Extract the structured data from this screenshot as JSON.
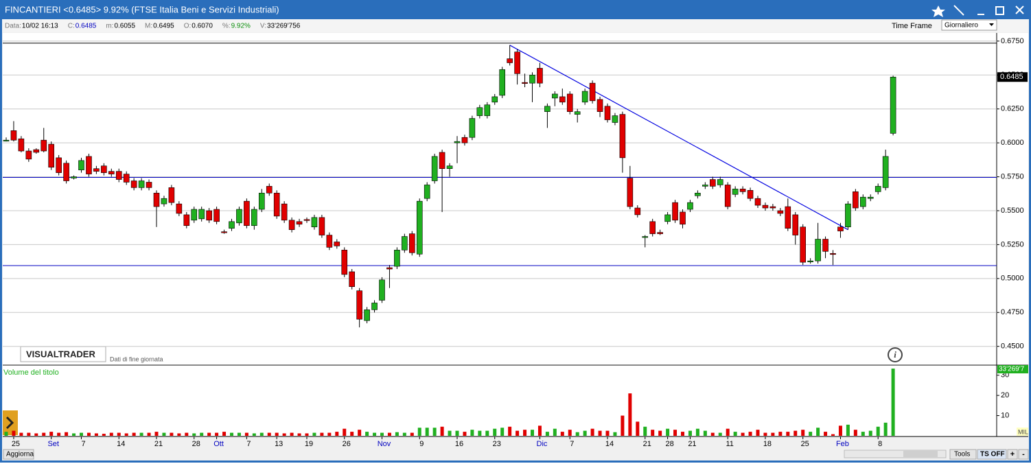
{
  "ui": {
    "title": "FINCANTIERI <0.6485> 9.92%  (FTSE Italia Beni e Servizi Industriali)",
    "info": [
      [
        "Data:",
        "10/02 16:13"
      ],
      [
        "C:",
        "0.6485"
      ],
      [
        "m:",
        "0.6055"
      ],
      [
        "M:",
        "0.6495"
      ],
      [
        "O:",
        "0.6070"
      ],
      [
        "%:",
        "9.92%"
      ],
      [
        "V:",
        "33'269'756"
      ]
    ],
    "time_frame_label": "Time Frame",
    "time_frame": "Giornaliero",
    "brand": "VISUALTRADER",
    "brand_note": "Dati di fine giornata",
    "unit": "MIL",
    "update": "Aggiorna",
    "tools": "Tools",
    "ts": "TS OFF",
    "plus": "+",
    "minus": "-"
  },
  "chart_data": {
    "type": "candlestick",
    "up_color": "#20b020",
    "down_color": "#e00000",
    "categories": [
      null,
      "25",
      null,
      null,
      null,
      null,
      "Set",
      null,
      null,
      null,
      "7",
      null,
      null,
      null,
      null,
      "14",
      null,
      null,
      null,
      null,
      "21",
      null,
      null,
      null,
      null,
      "28",
      null,
      null,
      "Ott",
      null,
      null,
      null,
      "7",
      null,
      null,
      null,
      "13",
      null,
      null,
      null,
      "19",
      null,
      null,
      null,
      null,
      "26",
      null,
      null,
      null,
      null,
      "Nov",
      null,
      null,
      null,
      null,
      "9",
      null,
      null,
      null,
      null,
      "16",
      null,
      null,
      null,
      null,
      "23",
      null,
      null,
      null,
      null,
      null,
      "Dic",
      null,
      null,
      null,
      "7",
      null,
      null,
      null,
      null,
      "14",
      null,
      null,
      null,
      null,
      "21",
      null,
      null,
      "28",
      null,
      null,
      "21",
      null,
      null,
      null,
      null,
      "11",
      null,
      null,
      null,
      null,
      "18",
      null,
      null,
      null,
      null,
      "25",
      null,
      null,
      null,
      null,
      "Feb",
      null,
      null,
      null,
      null,
      "8",
      null,
      null
    ],
    "open": [
      0.6015,
      0.609,
      0.603,
      0.594,
      0.595,
      0.602,
      0.599,
      0.589,
      0.585,
      0.574,
      0.58,
      0.59,
      0.581,
      0.583,
      0.579,
      0.579,
      0.577,
      0.572,
      0.567,
      0.571,
      0.563,
      0.555,
      0.567,
      0.555,
      0.547,
      0.543,
      0.544,
      0.55,
      0.551,
      0.5345,
      0.537,
      0.541,
      0.557,
      0.539,
      0.551,
      0.568,
      0.563,
      0.555,
      0.543,
      0.542,
      0.5435,
      0.538,
      0.545,
      0.532,
      0.527,
      0.521,
      0.505,
      0.491,
      0.469,
      0.477,
      0.484,
      0.508,
      0.509,
      0.521,
      0.533,
      0.518,
      0.559,
      0.572,
      0.593,
      0.581,
      0.6,
      0.604,
      0.604,
      0.62,
      0.62,
      0.63,
      0.635,
      0.662,
      0.667,
      0.6445,
      0.644,
      0.655,
      0.623,
      0.633,
      0.634,
      0.636,
      0.621,
      0.63,
      0.644,
      0.632,
      0.627,
      0.615,
      0.621,
      0.574,
      0.552,
      0.5305,
      0.542,
      0.534,
      0.542,
      0.556,
      0.549,
      0.551,
      0.561,
      0.568,
      0.573,
      0.569,
      0.569,
      0.562,
      0.566,
      0.565,
      0.559,
      0.554,
      0.553,
      0.55,
      0.553,
      0.547,
      0.538,
      0.5125,
      0.513,
      0.529,
      0.5185,
      0.538,
      0.538,
      0.564,
      0.553,
      0.559,
      0.564,
      0.567,
      0.607
    ],
    "high": [
      0.604,
      0.616,
      0.605,
      0.596,
      0.596,
      0.611,
      0.601,
      0.591,
      0.587,
      0.576,
      0.589,
      0.592,
      0.583,
      0.585,
      0.581,
      0.581,
      0.579,
      0.574,
      0.574,
      0.573,
      0.565,
      0.561,
      0.569,
      0.557,
      0.549,
      0.553,
      0.553,
      0.552,
      0.553,
      0.536,
      0.544,
      0.553,
      0.559,
      0.553,
      0.566,
      0.57,
      0.565,
      0.557,
      0.545,
      0.544,
      0.545,
      0.547,
      0.547,
      0.534,
      0.529,
      0.523,
      0.507,
      0.493,
      0.479,
      0.484,
      0.501,
      0.51,
      0.523,
      0.533,
      0.535,
      0.559,
      0.571,
      0.592,
      0.595,
      0.585,
      0.605,
      0.606,
      0.62,
      0.628,
      0.63,
      0.636,
      0.656,
      0.672,
      0.669,
      0.651,
      0.652,
      0.659,
      0.629,
      0.638,
      0.64,
      0.638,
      0.625,
      0.64,
      0.646,
      0.634,
      0.629,
      0.622,
      0.623,
      0.583,
      0.554,
      0.532,
      0.544,
      0.536,
      0.549,
      0.558,
      0.551,
      0.558,
      0.565,
      0.571,
      0.575,
      0.575,
      0.571,
      0.568,
      0.568,
      0.567,
      0.561,
      0.556,
      0.555,
      0.552,
      0.559,
      0.549,
      0.54,
      0.515,
      0.541,
      0.531,
      0.521,
      0.541,
      0.557,
      0.566,
      0.562,
      0.562,
      0.57,
      0.595,
      0.6495
    ],
    "low": [
      0.601,
      0.601,
      0.593,
      0.586,
      0.592,
      0.593,
      0.58,
      0.576,
      0.57,
      0.573,
      0.578,
      0.575,
      0.577,
      0.576,
      0.575,
      0.571,
      0.569,
      0.565,
      0.565,
      0.565,
      0.538,
      0.553,
      0.554,
      0.546,
      0.537,
      0.541,
      0.542,
      0.541,
      0.54,
      0.533,
      0.535,
      0.539,
      0.537,
      0.536,
      0.549,
      0.561,
      0.544,
      0.541,
      0.534,
      0.538,
      0.541,
      0.536,
      0.53,
      0.521,
      0.522,
      0.501,
      0.492,
      0.464,
      0.467,
      0.475,
      0.482,
      0.493,
      0.507,
      0.519,
      0.517,
      0.516,
      0.557,
      0.57,
      0.549,
      0.575,
      0.585,
      0.598,
      0.602,
      0.618,
      0.618,
      0.628,
      0.633,
      0.657,
      0.643,
      0.641,
      0.63,
      0.641,
      0.611,
      0.627,
      0.628,
      0.621,
      0.615,
      0.628,
      0.629,
      0.619,
      0.615,
      0.613,
      0.578,
      0.551,
      0.545,
      0.523,
      0.531,
      0.532,
      0.54,
      0.541,
      0.537,
      0.549,
      0.559,
      0.566,
      0.566,
      0.567,
      0.551,
      0.56,
      0.562,
      0.557,
      0.552,
      0.55,
      0.55,
      0.546,
      0.535,
      0.525,
      0.51,
      0.511,
      0.511,
      0.515,
      0.51,
      0.53,
      0.536,
      0.55,
      0.551,
      0.557,
      0.562,
      0.565,
      0.6055
    ],
    "close": [
      0.602,
      0.602,
      0.594,
      0.588,
      0.593,
      0.594,
      0.582,
      0.578,
      0.572,
      0.575,
      0.587,
      0.577,
      0.579,
      0.578,
      0.577,
      0.573,
      0.571,
      0.567,
      0.572,
      0.567,
      0.553,
      0.559,
      0.556,
      0.548,
      0.539,
      0.551,
      0.551,
      0.543,
      0.542,
      0.534,
      0.542,
      0.551,
      0.539,
      0.551,
      0.563,
      0.563,
      0.546,
      0.543,
      0.536,
      0.54,
      0.543,
      0.545,
      0.532,
      0.523,
      0.524,
      0.503,
      0.494,
      0.47,
      0.477,
      0.482,
      0.499,
      0.507,
      0.521,
      0.531,
      0.519,
      0.557,
      0.569,
      0.59,
      0.581,
      0.583,
      0.601,
      0.6,
      0.618,
      0.626,
      0.628,
      0.634,
      0.654,
      0.659,
      0.651,
      0.644,
      0.65,
      0.644,
      0.627,
      0.636,
      0.63,
      0.623,
      0.623,
      0.638,
      0.631,
      0.623,
      0.617,
      0.62,
      0.589,
      0.553,
      0.547,
      0.531,
      0.533,
      0.533,
      0.547,
      0.543,
      0.54,
      0.556,
      0.563,
      0.569,
      0.568,
      0.573,
      0.553,
      0.566,
      0.564,
      0.559,
      0.554,
      0.552,
      0.552,
      0.548,
      0.537,
      0.532,
      0.512,
      0.513,
      0.529,
      0.52,
      0.518,
      0.535,
      0.555,
      0.552,
      0.56,
      0.56,
      0.568,
      0.59,
      0.6485
    ],
    "close_label": "0.6485",
    "ylim": [
      0.4372,
      0.681
    ],
    "yticks": [
      {
        "value": 0.45,
        "label": "0.4500"
      },
      {
        "value": 0.475,
        "label": "0.4750"
      },
      {
        "value": 0.5,
        "label": "0.5000"
      },
      {
        "value": 0.525,
        "label": "0.5250"
      },
      {
        "value": 0.55,
        "label": "0.5500"
      },
      {
        "value": 0.575,
        "label": "0.5750"
      },
      {
        "value": 0.6,
        "label": "0.6000"
      },
      {
        "value": 0.625,
        "label": "0.6250"
      },
      {
        "value": 0.65,
        "label": "0.6500"
      },
      {
        "value": 0.675,
        "label": "0.6750"
      }
    ],
    "hlines": [
      {
        "value": 0.6735,
        "color": "#000000"
      },
      {
        "value": 0.5745,
        "color": "#0000c0"
      },
      {
        "value": 0.5095,
        "color": "#0000c0"
      }
    ],
    "trendline": {
      "color": "#0000e0",
      "from": [
        67,
        0.672
      ],
      "to": [
        112,
        0.536
      ]
    },
    "volume_title": "Volume del titolo",
    "volume_label": "33'269'7",
    "volume": [
      2,
      2.5,
      1.5,
      1.5,
      1.2,
      1.5,
      2,
      1.5,
      1.8,
      1.2,
      1.5,
      1.5,
      1.2,
      1,
      1.5,
      1.5,
      1.2,
      1.5,
      1.5,
      1.5,
      2,
      1.5,
      1.5,
      1.2,
      1.5,
      1.2,
      1.5,
      1.5,
      1.5,
      2,
      1.5,
      1.5,
      1.5,
      1.2,
      1.5,
      1.5,
      1.5,
      1.2,
      1.5,
      1.2,
      1.2,
      1.5,
      1.5,
      1.5,
      2,
      3.5,
      2,
      3,
      2,
      1.5,
      1.5,
      1.5,
      1.8,
      1.5,
      1.5,
      4,
      4,
      4,
      4.5,
      2.5,
      2.5,
      2,
      3,
      2.5,
      2.5,
      3.5,
      4,
      4.5,
      2.5,
      3,
      3,
      5,
      2,
      3.5,
      2,
      3,
      1.8,
      2.5,
      3.5,
      2.5,
      2.5,
      1.8,
      10,
      21,
      7,
      4.5,
      3,
      2.5,
      3.5,
      3,
      2,
      2.5,
      3.5,
      2.5,
      1.5,
      1.5,
      3.5,
      2,
      1.5,
      2,
      3,
      1.5,
      1.5,
      2,
      2,
      2.5,
      3,
      2,
      4,
      2,
      0.8,
      5,
      5.5,
      3,
      2,
      2.5,
      4.5,
      6.5,
      33.27
    ],
    "vlim": [
      0,
      33.3
    ],
    "vticks": [
      10,
      20,
      30
    ]
  }
}
